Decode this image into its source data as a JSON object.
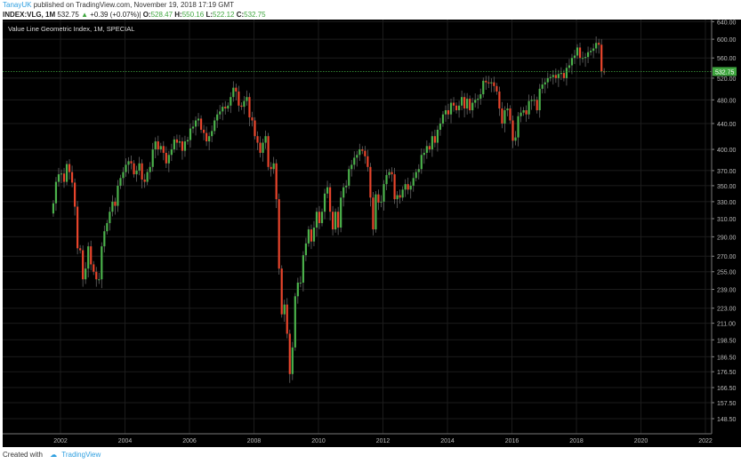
{
  "header": {
    "user": "TanayUK",
    "published": "published on TradingView.com, November 19, 2018 17:19 GMT",
    "symbol": "INDEX:VLG, 1M",
    "last": "532.75",
    "change": "+0.39 (+0.07%)",
    "o_label": "O:",
    "o": "528.47",
    "h_label": "H:",
    "h": "550.16",
    "l_label": "L:",
    "l": "522.12",
    "c_label": "C:",
    "c": "532.75"
  },
  "footer": {
    "created_with": "Created with",
    "brand": "TradingView"
  },
  "colors": {
    "up": "#4bb14b",
    "down": "#e8452c",
    "background": "#000000",
    "grid": "#1c1c1c",
    "price_line": "#3fa63f"
  },
  "chart_data": {
    "type": "candlestick",
    "title": "Value Line Geometric Index, 1M, SPECIAL",
    "y_scale": "log",
    "ylim": [
      145,
      645
    ],
    "y_ticks": [
      "640.00",
      "600.00",
      "560.00",
      "520.00",
      "480.00",
      "440.00",
      "400.00",
      "370.00",
      "350.00",
      "330.00",
      "310.00",
      "290.00",
      "270.00",
      "255.00",
      "239.00",
      "223.00",
      "211.00",
      "198.50",
      "186.50",
      "176.50",
      "166.50",
      "157.50",
      "148.50"
    ],
    "x_ticks": [
      "2002",
      "2004",
      "2006",
      "2008",
      "2010",
      "2012",
      "2014",
      "2016",
      "2018",
      "2020",
      "2022"
    ],
    "grid": true,
    "last_price_label": "532.75",
    "start_month": "2001-10",
    "interval": "1M",
    "first_open": 316,
    "closes": [
      328,
      355,
      365,
      366,
      355,
      379,
      368,
      354,
      324,
      278,
      276,
      248,
      258,
      280,
      262,
      255,
      248,
      248,
      280,
      296,
      305,
      318,
      330,
      325,
      350,
      360,
      368,
      378,
      383,
      380,
      365,
      370,
      380,
      358,
      355,
      368,
      375,
      400,
      412,
      400,
      405,
      395,
      380,
      392,
      400,
      415,
      410,
      412,
      398,
      412,
      414,
      432,
      435,
      445,
      448,
      430,
      425,
      412,
      420,
      428,
      445,
      455,
      460,
      468,
      465,
      470,
      485,
      502,
      495,
      470,
      468,
      478,
      485,
      450,
      445,
      420,
      410,
      395,
      410,
      420,
      375,
      372,
      380,
      333,
      258,
      218,
      226,
      203,
      175,
      193,
      233,
      245,
      245,
      271,
      283,
      298,
      285,
      300,
      318,
      305,
      318,
      340,
      348,
      318,
      298,
      318,
      300,
      335,
      348,
      350,
      372,
      378,
      388,
      392,
      400,
      398,
      390,
      375,
      335,
      298,
      339,
      329,
      330,
      352,
      364,
      368,
      365,
      333,
      338,
      335,
      345,
      352,
      345,
      350,
      360,
      368,
      372,
      392,
      395,
      405,
      400,
      420,
      410,
      430,
      440,
      455,
      462,
      455,
      475,
      470,
      462,
      470,
      485,
      465,
      482,
      462,
      475,
      480,
      482,
      490,
      515,
      512,
      510,
      512,
      505,
      495,
      465,
      440,
      462,
      465,
      445,
      413,
      418,
      452,
      458,
      462,
      455,
      478,
      480,
      480,
      462,
      500,
      508,
      512,
      520,
      522,
      526,
      520,
      528,
      530,
      520,
      540,
      545,
      560,
      565,
      582,
      560,
      560,
      562,
      572,
      575,
      580,
      592,
      588,
      533,
      532.75
    ]
  }
}
